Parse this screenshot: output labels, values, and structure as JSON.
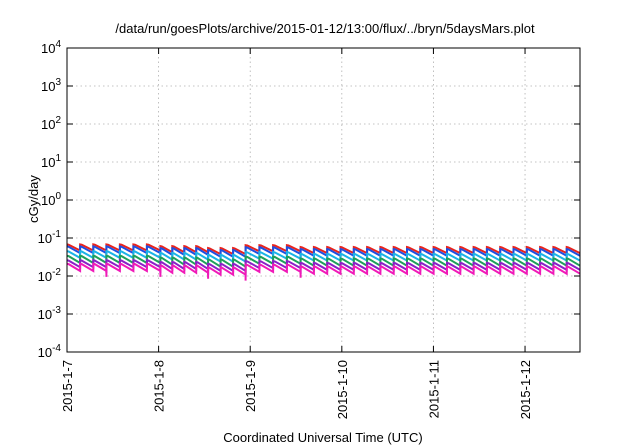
{
  "chart_data": {
    "type": "line",
    "title": "/data/run/goesPlots/archive/2015-01-12/13:00/flux/../bryn/5daysMars.plot",
    "xlabel": "Coordinated Universal Time (UTC)",
    "ylabel": "cGy/day",
    "x_range_days": [
      0,
      5.6
    ],
    "ylim": [
      0.0001,
      10000
    ],
    "yscale": "log",
    "grid": true,
    "legend": "none",
    "x_ticks": [
      {
        "label": "2015-1-7",
        "day": 0
      },
      {
        "label": "2015-1-8",
        "day": 1
      },
      {
        "label": "2015-1-9",
        "day": 2
      },
      {
        "label": "2015-1-10",
        "day": 3
      },
      {
        "label": "2015-1-11",
        "day": 4
      },
      {
        "label": "2015-1-12",
        "day": 5
      }
    ],
    "y_ticks": [
      {
        "exp": "-4",
        "value": 0.0001
      },
      {
        "exp": "-3",
        "value": 0.001
      },
      {
        "exp": "-2",
        "value": 0.01
      },
      {
        "exp": "-1",
        "value": 0.1
      },
      {
        "exp": "0",
        "value": 1
      },
      {
        "exp": "1",
        "value": 10
      },
      {
        "exp": "2",
        "value": 100
      },
      {
        "exp": "3",
        "value": 1000
      },
      {
        "exp": "4",
        "value": 10000
      }
    ],
    "tick_base": "10",
    "segments": [
      {
        "x": [
          0.0,
          0.43
        ],
        "hi_scale": 1.0
      },
      {
        "x": [
          0.43,
          1.02
        ],
        "hi_scale": 1.0
      },
      {
        "x": [
          1.02,
          1.54
        ],
        "hi_scale": 0.9
      },
      {
        "x": [
          1.54,
          1.95
        ],
        "hi_scale": 0.8
      },
      {
        "x": [
          1.95,
          2.55
        ],
        "hi_scale": 0.95
      },
      {
        "x": [
          2.55,
          5.6
        ],
        "hi_scale": 0.85
      }
    ],
    "teeth_per_day": 7,
    "series": [
      {
        "color": "#e8231d",
        "hi": 0.068,
        "lo": 0.047
      },
      {
        "color": "#1e4ee0",
        "hi": 0.06,
        "lo": 0.04
      },
      {
        "color": "#1ab3e6",
        "hi": 0.045,
        "lo": 0.03
      },
      {
        "color": "#1fa05a",
        "hi": 0.034,
        "lo": 0.022
      },
      {
        "color": "#8a1fc7",
        "hi": 0.026,
        "lo": 0.017
      },
      {
        "color": "#f01ab8",
        "hi": 0.021,
        "lo": 0.0135
      }
    ]
  }
}
